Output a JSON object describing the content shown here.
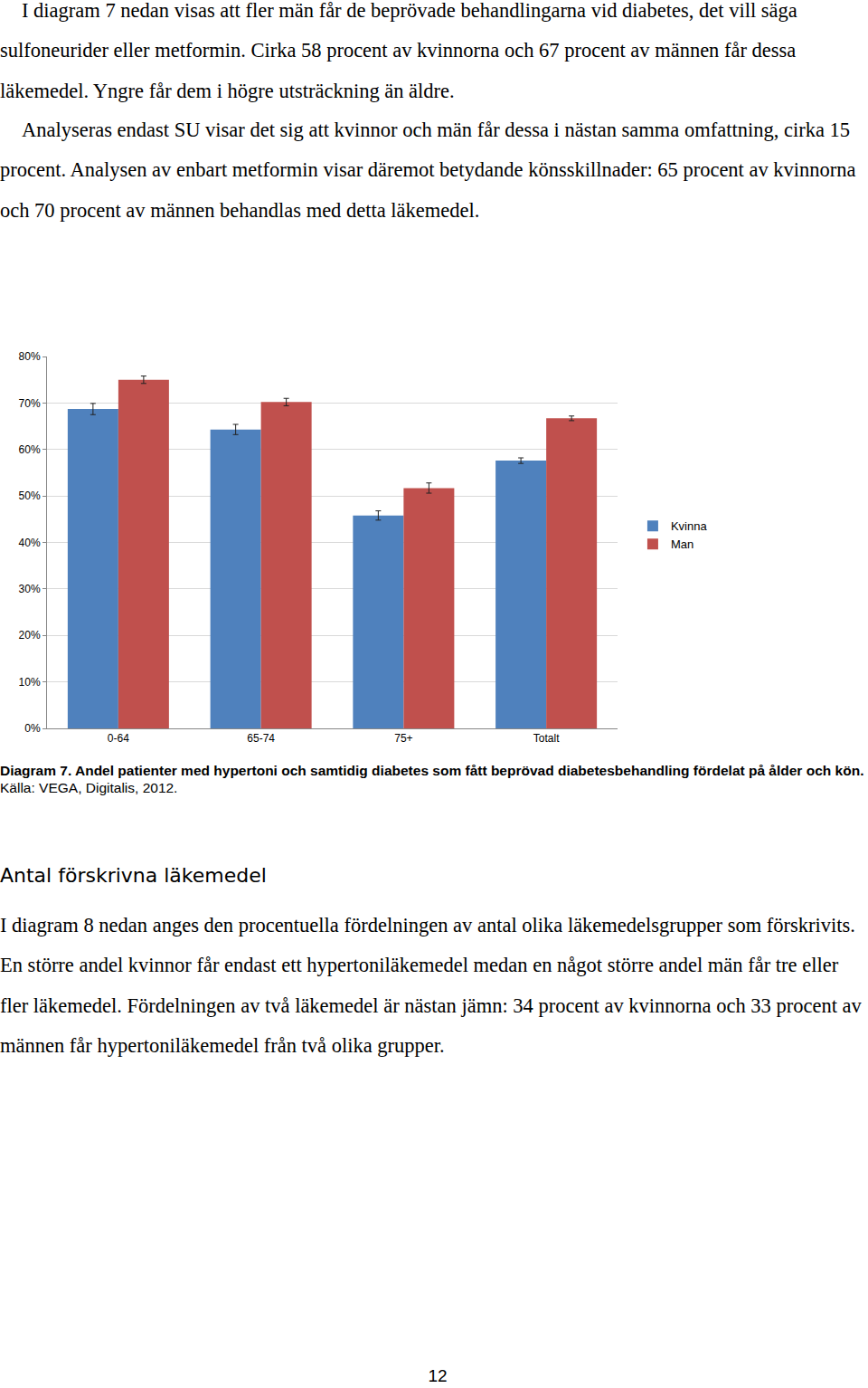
{
  "paragraphs_top": [
    "I diagram 7 nedan visas att fler män får de beprövade behandlingarna vid diabetes, det vill säga sulfoneurider eller metformin. Cirka 58 procent av kvinnorna och 67 procent av männen får dessa läkemedel. Yngre får dem i högre utsträckning än äldre.",
    "Analyseras endast SU visar det sig att kvinnor och män får dessa i nästan samma omfattning, cirka 15 procent. Analysen av enbart metformin visar däremot betydande könsskillnader: 65 procent av kvinnorna och 70 procent av männen behandlas med detta läkemedel."
  ],
  "chart_data": {
    "type": "bar",
    "categories": [
      "0-64",
      "65-74",
      "75+",
      "Totalt"
    ],
    "series": [
      {
        "name": "Kvinna",
        "color": "#4f81bd",
        "values": [
          68.7,
          64.3,
          45.8,
          57.6
        ],
        "errors": [
          1.2,
          1.1,
          1.0,
          0.6
        ]
      },
      {
        "name": "Man",
        "color": "#c0504d",
        "values": [
          75.0,
          70.2,
          51.7,
          66.7
        ],
        "errors": [
          0.8,
          0.8,
          1.1,
          0.5
        ]
      }
    ],
    "ylim": [
      0,
      80
    ],
    "yticks": [
      {
        "value": 0,
        "label": "0%"
      },
      {
        "value": 10,
        "label": "10%"
      },
      {
        "value": 20,
        "label": "20%"
      },
      {
        "value": 30,
        "label": "30%"
      },
      {
        "value": 40,
        "label": "40%"
      },
      {
        "value": 50,
        "label": "50%"
      },
      {
        "value": 60,
        "label": "60%"
      },
      {
        "value": 70,
        "label": "70%"
      },
      {
        "value": 80,
        "label": "80%"
      }
    ],
    "grid": true,
    "legend": "right"
  },
  "caption": {
    "title": "Diagram 7. Andel patienter med hypertoni och samtidig diabetes som fått beprövad diabetesbehandling fördelat på ålder och kön.",
    "source": "Källa: VEGA, Digitalis, 2012."
  },
  "heading": "Antal förskrivna läkemedel",
  "paragraphs_bottom": [
    "I diagram 8 nedan anges den procentuella fördelningen av antal olika läkemedelsgrupper som förskrivits. En större andel kvinnor får endast ett hypertoniläkemedel medan en något större andel män får tre eller fler läkemedel. Fördelningen av två läkemedel är nästan jämn: 34 procent av kvinnorna och 33 procent av männen får hypertoniläkemedel från två olika grupper."
  ],
  "page_number": "12"
}
